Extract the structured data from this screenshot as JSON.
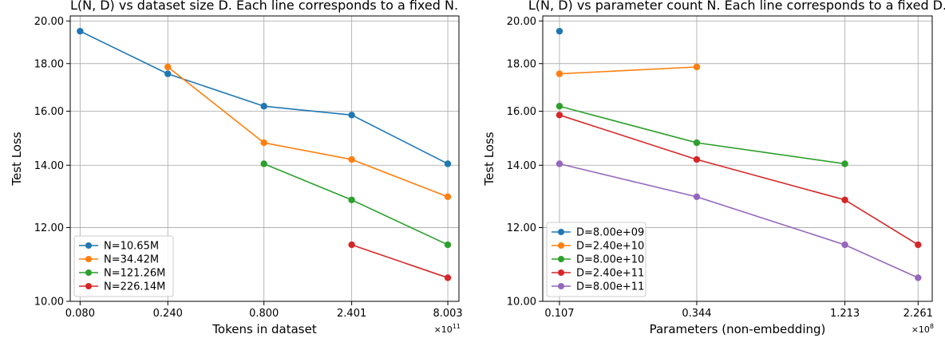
{
  "chart_data": [
    {
      "type": "line",
      "title": "L(N, D) vs dataset size D. Each line corresponds to a fixed N.",
      "xlabel": "Tokens in dataset",
      "ylabel": "Test Loss",
      "xscale": "log",
      "yscale": "log",
      "x_multiplier": "×10",
      "x_multiplier_exp": "11",
      "x_tick_values": [
        0.08,
        0.24,
        0.8,
        2.401,
        8.003
      ],
      "x_tick_labels": [
        "0.080",
        "0.240",
        "0.800",
        "2.401",
        "8.003"
      ],
      "y_tick_values": [
        10,
        12,
        14,
        16,
        18,
        20
      ],
      "y_tick_labels": [
        "10.00",
        "12.00",
        "14.00",
        "16.00",
        "18.00",
        "20.00"
      ],
      "xlim": [
        0.0707,
        9.2
      ],
      "ylim": [
        10.0,
        20.25
      ],
      "legend_position": "lower-left",
      "series": [
        {
          "name": "N=10.65M",
          "color": "#1f77b4",
          "x": [
            0.08,
            0.24,
            0.8,
            2.401,
            8.003
          ],
          "y": [
            19.5,
            17.55,
            16.2,
            15.85,
            14.05
          ]
        },
        {
          "name": "N=34.42M",
          "color": "#ff7f0e",
          "x": [
            0.24,
            0.8,
            2.401,
            8.003
          ],
          "y": [
            17.85,
            14.8,
            14.2,
            12.95
          ]
        },
        {
          "name": "N=121.26M",
          "color": "#2ca02c",
          "x": [
            0.8,
            2.401,
            8.003
          ],
          "y": [
            14.05,
            12.85,
            11.5
          ]
        },
        {
          "name": "N=226.14M",
          "color": "#d62728",
          "x": [
            2.401,
            8.003
          ],
          "y": [
            11.5,
            10.6
          ]
        }
      ]
    },
    {
      "type": "line",
      "title": "L(N, D) vs parameter count N. Each line corresponds to a fixed D.",
      "xlabel": "Parameters (non-embedding)",
      "ylabel": "Test Loss",
      "xscale": "log",
      "yscale": "log",
      "x_multiplier": "×10",
      "x_multiplier_exp": "8",
      "x_tick_values": [
        0.107,
        0.344,
        1.213,
        2.261
      ],
      "x_tick_labels": [
        "0.107",
        "0.344",
        "1.213",
        "2.261"
      ],
      "y_tick_values": [
        10,
        12,
        14,
        16,
        18,
        20
      ],
      "y_tick_labels": [
        "10.00",
        "12.00",
        "14.00",
        "16.00",
        "18.00",
        "20.00"
      ],
      "xlim": [
        0.0928,
        2.55
      ],
      "ylim": [
        10.0,
        20.25
      ],
      "legend_position": "lower-left",
      "series": [
        {
          "name": "D=8.00e+09",
          "color": "#1f77b4",
          "x": [
            0.107
          ],
          "y": [
            19.5
          ]
        },
        {
          "name": "D=2.40e+10",
          "color": "#ff7f0e",
          "x": [
            0.107,
            0.344
          ],
          "y": [
            17.55,
            17.85
          ]
        },
        {
          "name": "D=8.00e+10",
          "color": "#2ca02c",
          "x": [
            0.107,
            0.344,
            1.213
          ],
          "y": [
            16.2,
            14.8,
            14.05
          ]
        },
        {
          "name": "D=2.40e+11",
          "color": "#d62728",
          "x": [
            0.107,
            0.344,
            1.213,
            2.261
          ],
          "y": [
            15.85,
            14.2,
            12.85,
            11.5
          ]
        },
        {
          "name": "D=8.00e+11",
          "color": "#9467bd",
          "x": [
            0.107,
            0.344,
            1.213,
            2.261
          ],
          "y": [
            14.05,
            12.95,
            11.5,
            10.6
          ]
        }
      ]
    }
  ]
}
